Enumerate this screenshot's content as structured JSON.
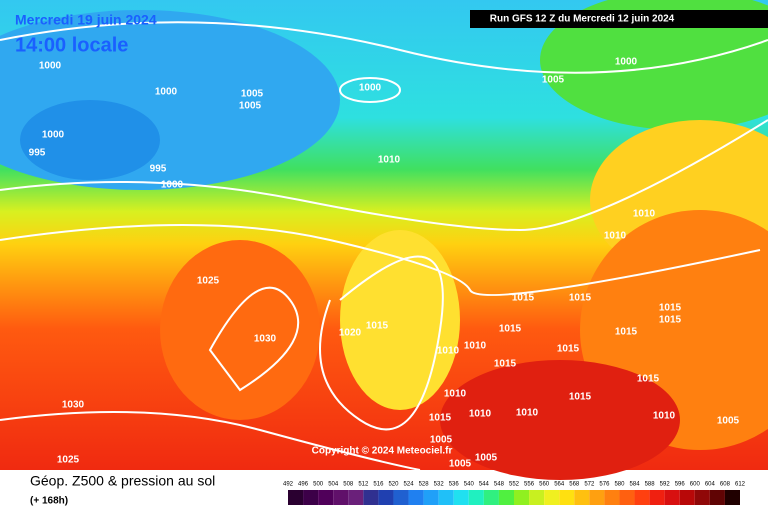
{
  "header": {
    "title": "Mercredi 19 juin 2024",
    "time": "14:00 locale",
    "run": "Run GFS 12 Z du Mercredi 12 juin 2024"
  },
  "isobars": [
    "1000",
    "1000",
    "1005",
    "1005",
    "1000",
    "1005",
    "1000",
    "1000",
    "995",
    "995",
    "1000",
    "1010",
    "1010",
    "1010",
    "1025",
    "1015",
    "1015",
    "1015",
    "1015",
    "1020",
    "1015",
    "1030",
    "1015",
    "1015",
    "1010",
    "1010",
    "1015",
    "1015",
    "1015",
    "1010",
    "1015",
    "1030",
    "1010",
    "1010",
    "1015",
    "1010",
    "1005",
    "1005",
    "1005",
    "1005",
    "1025"
  ],
  "copyright": "Copyright © 2024 Meteociel.fr",
  "footer": {
    "title": "Géop. Z500 & pression au sol",
    "subtitle": "(+ 168h)"
  },
  "colorbar": {
    "labels": [
      492,
      496,
      500,
      504,
      508,
      512,
      516,
      520,
      524,
      528,
      532,
      536,
      540,
      544,
      548,
      552,
      556,
      560,
      564,
      568,
      572,
      576,
      580,
      584,
      588,
      592,
      596,
      600,
      604,
      608,
      612
    ]
  }
}
